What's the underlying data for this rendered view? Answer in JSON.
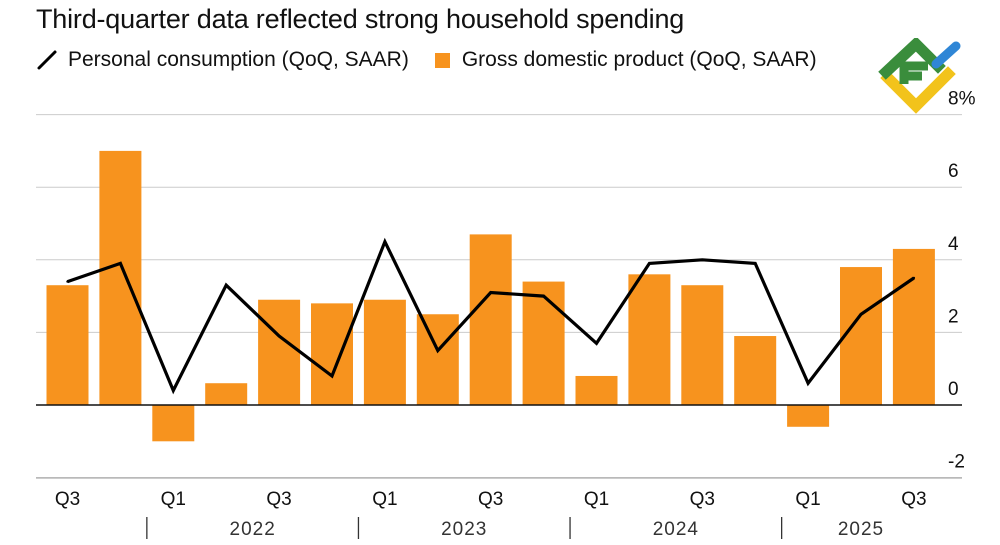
{
  "colors": {
    "bar": "#F7931E",
    "line": "#000000",
    "grid": "#cccccc",
    "text": "#111111",
    "logo_green": "#3a8d3c",
    "logo_blue": "#2f86d6",
    "logo_yellow": "#f2c31b"
  },
  "chart_data": {
    "type": "bar",
    "title": "Third-quarter data reflected strong household spending",
    "legend": {
      "line_label": "Personal consumption (QoQ, SAAR)",
      "bar_label": "Gross domestic product (QoQ, SAAR)"
    },
    "quarters": [
      "2021 Q3",
      "2021 Q4",
      "2022 Q1",
      "2022 Q2",
      "2022 Q3",
      "2022 Q4",
      "2023 Q1",
      "2023 Q2",
      "2023 Q3",
      "2023 Q4",
      "2024 Q1",
      "2024 Q2",
      "2024 Q3",
      "2024 Q4",
      "2025 Q1",
      "2025 Q2",
      "2025 Q3"
    ],
    "series": [
      {
        "name": "Gross domestic product (QoQ, SAAR)",
        "type": "bar",
        "values": [
          3.3,
          7.0,
          -1.0,
          0.6,
          2.9,
          2.8,
          2.9,
          2.5,
          4.7,
          3.4,
          0.8,
          3.6,
          3.3,
          1.9,
          -0.6,
          3.8,
          4.3
        ]
      },
      {
        "name": "Personal consumption (QoQ, SAAR)",
        "type": "line",
        "values": [
          3.4,
          3.9,
          0.4,
          3.3,
          1.9,
          0.8,
          4.5,
          1.5,
          3.1,
          3.0,
          1.7,
          3.9,
          4.0,
          3.9,
          0.6,
          2.5,
          3.5
        ]
      }
    ],
    "y_ticks": [
      {
        "value": 8,
        "label": "8%"
      },
      {
        "value": 6,
        "label": "6"
      },
      {
        "value": 4,
        "label": "4"
      },
      {
        "value": 2,
        "label": "2"
      },
      {
        "value": 0,
        "label": "0"
      },
      {
        "value": -2,
        "label": "-2"
      }
    ],
    "ylim": [
      -2,
      8
    ],
    "x_tick_labels": [
      {
        "index": 0,
        "label": "Q3"
      },
      {
        "index": 2,
        "label": "Q1"
      },
      {
        "index": 4,
        "label": "Q3"
      },
      {
        "index": 6,
        "label": "Q1"
      },
      {
        "index": 8,
        "label": "Q3"
      },
      {
        "index": 10,
        "label": "Q1"
      },
      {
        "index": 12,
        "label": "Q3"
      },
      {
        "index": 14,
        "label": "Q1"
      },
      {
        "index": 16,
        "label": "Q3"
      }
    ],
    "year_labels": [
      {
        "label": "2022",
        "start": 2,
        "end": 5
      },
      {
        "label": "2023",
        "start": 6,
        "end": 9
      },
      {
        "label": "2024",
        "start": 10,
        "end": 13
      },
      {
        "label": "2025",
        "start": 14,
        "end": 16
      }
    ],
    "year_separators": [
      1.5,
      5.5,
      9.5,
      13.5
    ]
  }
}
